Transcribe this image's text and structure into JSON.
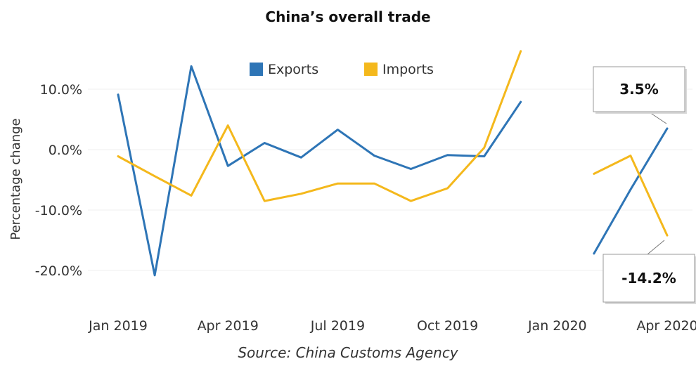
{
  "chart_data": {
    "type": "line",
    "title": "China’s overall trade",
    "source": "Source: China Customs Agency",
    "ylabel": "Percentage change",
    "xlabel": "",
    "ylim": [
      -25,
      16
    ],
    "y_ticks": [
      {
        "value": 10,
        "label": "10.0%"
      },
      {
        "value": 0,
        "label": "0.0%"
      },
      {
        "value": -10,
        "label": "-10.0%"
      },
      {
        "value": -20,
        "label": "-20.0%"
      }
    ],
    "x": [
      "Jan 2019",
      "Feb 2019",
      "Mar 2019",
      "Apr 2019",
      "May 2019",
      "Jun 2019",
      "Jul 2019",
      "Aug 2019",
      "Sep 2019",
      "Oct 2019",
      "Nov 2019",
      "Dec 2019",
      "Jan 2020",
      "Feb 2020",
      "Mar 2020",
      "Apr 2020"
    ],
    "x_tick_labels": [
      {
        "x": "Jan 2019",
        "label": "Jan 2019"
      },
      {
        "x": "Apr 2019",
        "label": "Apr 2019"
      },
      {
        "x": "Jul 2019",
        "label": "Jul 2019"
      },
      {
        "x": "Oct 2019",
        "label": "Oct 2019"
      },
      {
        "x": "Jan 2020",
        "label": "Jan 2020"
      },
      {
        "x": "Apr 2020",
        "label": "Apr 2020"
      }
    ],
    "series": [
      {
        "name": "Exports",
        "color": "#2e75b6",
        "values": [
          9.1,
          -20.8,
          13.8,
          -2.7,
          1.1,
          -1.3,
          3.3,
          -1.0,
          -3.2,
          -0.9,
          -1.1,
          7.9,
          null,
          -17.2,
          -6.6,
          3.5
        ]
      },
      {
        "name": "Imports",
        "color": "#f4b81c",
        "values": [
          -1.1,
          -4.4,
          -7.6,
          4.0,
          -8.5,
          -7.3,
          -5.6,
          -5.6,
          -8.5,
          -6.4,
          0.3,
          16.3,
          null,
          -4.0,
          -1.0,
          -14.2
        ]
      }
    ],
    "legend_position": "top-center",
    "grid": true,
    "annotations": [
      {
        "series": "Exports",
        "x": "Apr 2020",
        "label": "3.5%"
      },
      {
        "series": "Imports",
        "x": "Apr 2020",
        "label": "-14.2%"
      }
    ]
  }
}
